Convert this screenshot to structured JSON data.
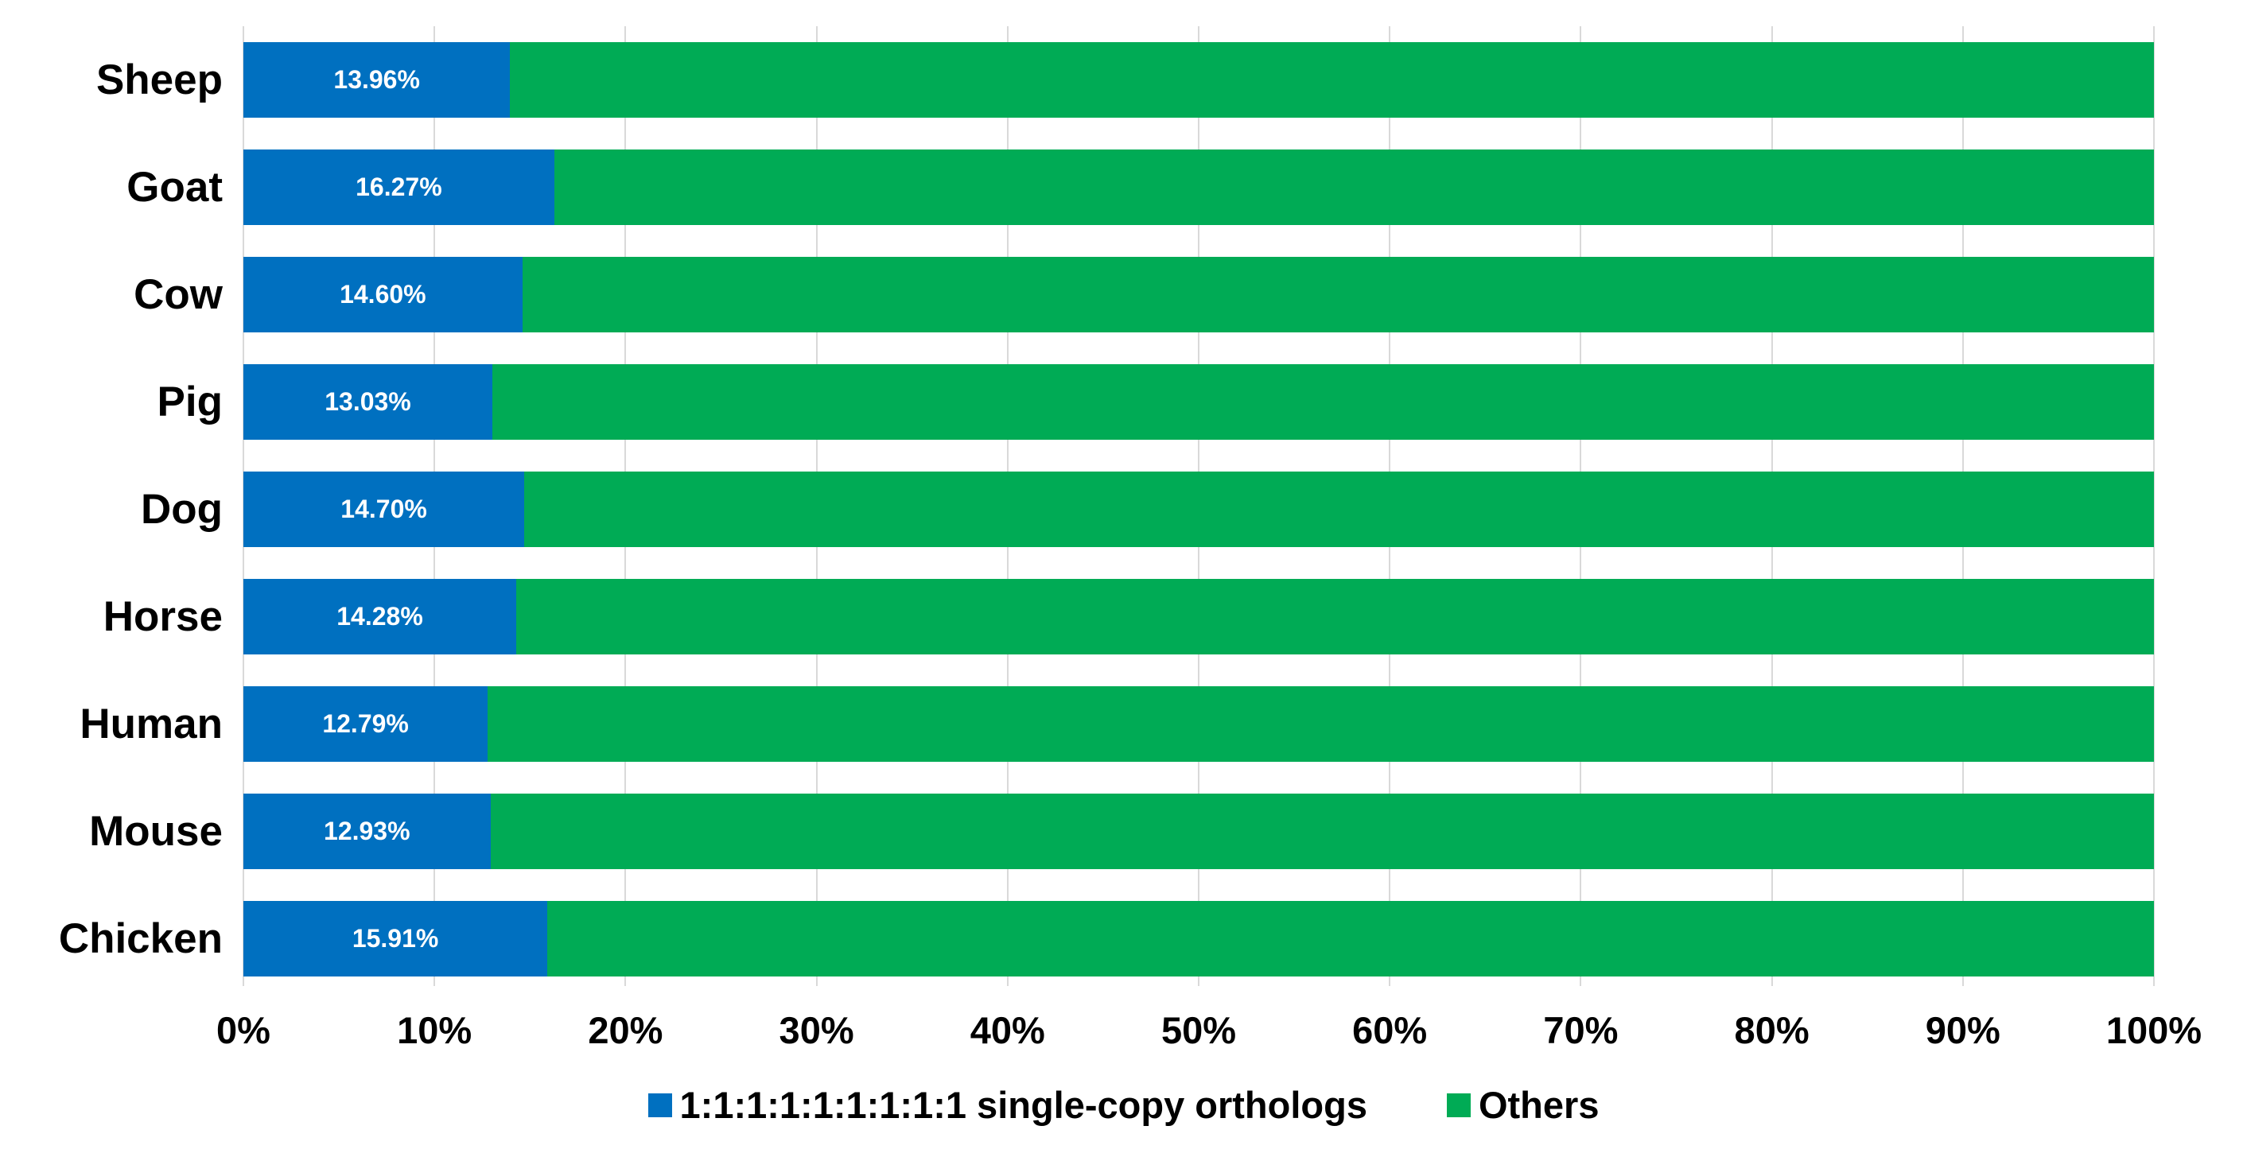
{
  "chart_data": {
    "type": "bar",
    "orientation": "horizontal",
    "stacked": true,
    "stacked_total": 100,
    "title": "",
    "xlabel": "",
    "ylabel": "",
    "categories": [
      "Sheep",
      "Goat",
      "Cow",
      "Pig",
      "Dog",
      "Horse",
      "Human",
      "Mouse",
      "Chicken"
    ],
    "series": [
      {
        "name": "1:1:1:1:1:1:1:1:1 single-copy orthologs",
        "color": "#0070C0",
        "values": [
          13.96,
          16.27,
          14.6,
          13.03,
          14.7,
          14.28,
          12.79,
          12.93,
          15.91
        ],
        "labels": [
          "13.96%",
          "16.27%",
          "14.60%",
          "13.03%",
          "14.70%",
          "14.28%",
          "12.79%",
          "12.93%",
          "15.91%"
        ],
        "label_color": "#FFFFFF"
      },
      {
        "name": "Others",
        "color": "#00AB55",
        "values": [
          86.04,
          83.73,
          85.4,
          86.97,
          85.3,
          85.72,
          87.21,
          87.07,
          84.09
        ],
        "labels": [
          "",
          "",
          "",
          "",
          "",
          "",
          "",
          "",
          ""
        ],
        "label_color": "#FFFFFF"
      }
    ],
    "x_ticks": [
      "0%",
      "10%",
      "20%",
      "30%",
      "40%",
      "50%",
      "60%",
      "70%",
      "80%",
      "90%",
      "100%"
    ],
    "xlim": [
      0,
      100
    ],
    "grid": true,
    "gridline_color": "#D9D9D9",
    "axis_text_color": "#000000",
    "background_color": "#FFFFFF",
    "legend_position": "bottom"
  }
}
